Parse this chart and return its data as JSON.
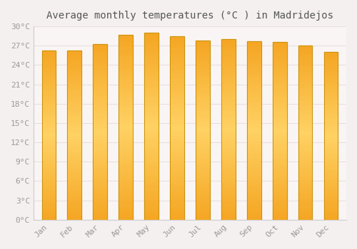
{
  "title": "Average monthly temperatures (°C ) in Madridejos",
  "months": [
    "Jan",
    "Feb",
    "Mar",
    "Apr",
    "May",
    "Jun",
    "Jul",
    "Aug",
    "Sep",
    "Oct",
    "Nov",
    "Dec"
  ],
  "values": [
    26.3,
    26.3,
    27.3,
    28.7,
    29.0,
    28.5,
    27.8,
    28.0,
    27.7,
    27.6,
    27.0,
    26.0
  ],
  "bar_color_center": "#FFD966",
  "bar_color_edge": "#F5A623",
  "bar_color_bottom": "#F5A623",
  "bar_outline_color": "#C8930A",
  "background_color": "#F5F0F0",
  "plot_bg_color": "#FAF5F5",
  "grid_color": "#E8E0E0",
  "text_color": "#999999",
  "title_color": "#555555",
  "ylim": [
    0,
    30
  ],
  "ytick_step": 3,
  "title_fontsize": 10,
  "tick_fontsize": 8,
  "font_family": "monospace",
  "bar_width": 0.55
}
